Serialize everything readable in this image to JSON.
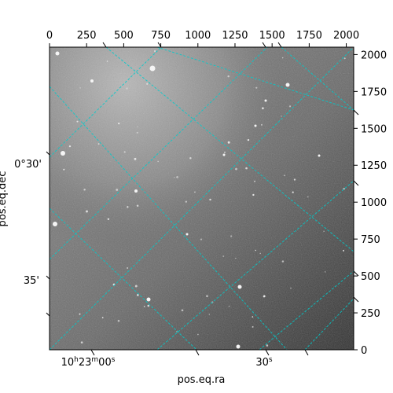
{
  "chart_data": {
    "type": "image",
    "xlabel": "pos.eq.ra",
    "ylabel": "pos.eq.dec",
    "pixel_axes": {
      "top_ticks": [
        0,
        250,
        500,
        750,
        1000,
        1250,
        1500,
        1750,
        2000
      ],
      "right_ticks": [
        0,
        250,
        500,
        750,
        1000,
        1250,
        1500,
        1750,
        2000
      ],
      "xlim": [
        0,
        2050
      ],
      "ylim": [
        0,
        2050
      ]
    },
    "world_axes": {
      "ra_ticks": [
        {
          "h": "10",
          "m": "23",
          "s": "00",
          "label": "10h23m00s"
        },
        {
          "label": "30s"
        }
      ],
      "dec_ticks": [
        {
          "label": "0°30'"
        },
        {
          "label": "35'"
        }
      ]
    },
    "grid": true,
    "grid_color": "#00cccc",
    "image_colormap": "gray"
  }
}
